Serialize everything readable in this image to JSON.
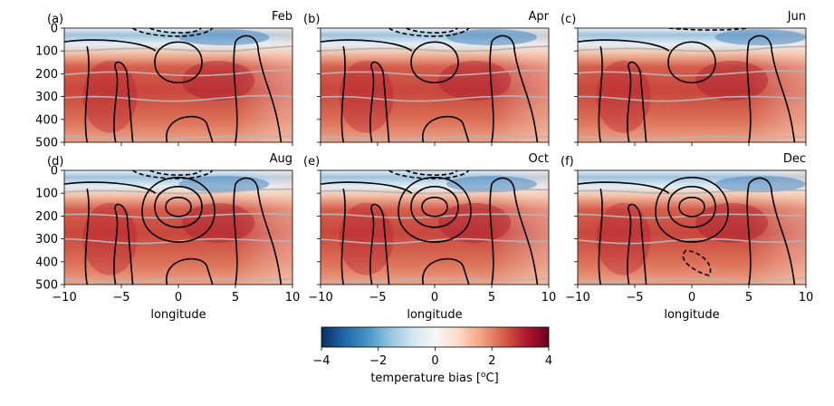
{
  "chart_data": {
    "type": "heatmap",
    "description_fields_note": "",
    "xlabel": "longitude",
    "xlim": [
      -10,
      10
    ],
    "xticks": [
      -10,
      -5,
      0,
      5,
      10
    ],
    "ylim": [
      500,
      0
    ],
    "yticks": [
      0,
      100,
      200,
      300,
      400,
      500
    ],
    "colormap": "RdBu_r",
    "colorbar": {
      "label": "temperature bias [$^o$C]",
      "label_text": "temperature bias [",
      "label_sup": "o",
      "label_tail": "C]",
      "range": [
        -4,
        4
      ],
      "ticks": [
        -4,
        -2,
        0,
        2,
        4
      ]
    },
    "panels": [
      {
        "id": "(a)",
        "month": "Feb"
      },
      {
        "id": "(b)",
        "month": "Apr"
      },
      {
        "id": "(c)",
        "month": "Jun"
      },
      {
        "id": "(d)",
        "month": "Aug"
      },
      {
        "id": "(e)",
        "month": "Oct"
      },
      {
        "id": "(f)",
        "month": "Dec"
      }
    ],
    "colors": {
      "cold": "#2a6fb0",
      "neutral": "#f7f7f7",
      "warm": "#c63c36",
      "contour": "#000000",
      "isoline": "#b4b4b4"
    }
  }
}
